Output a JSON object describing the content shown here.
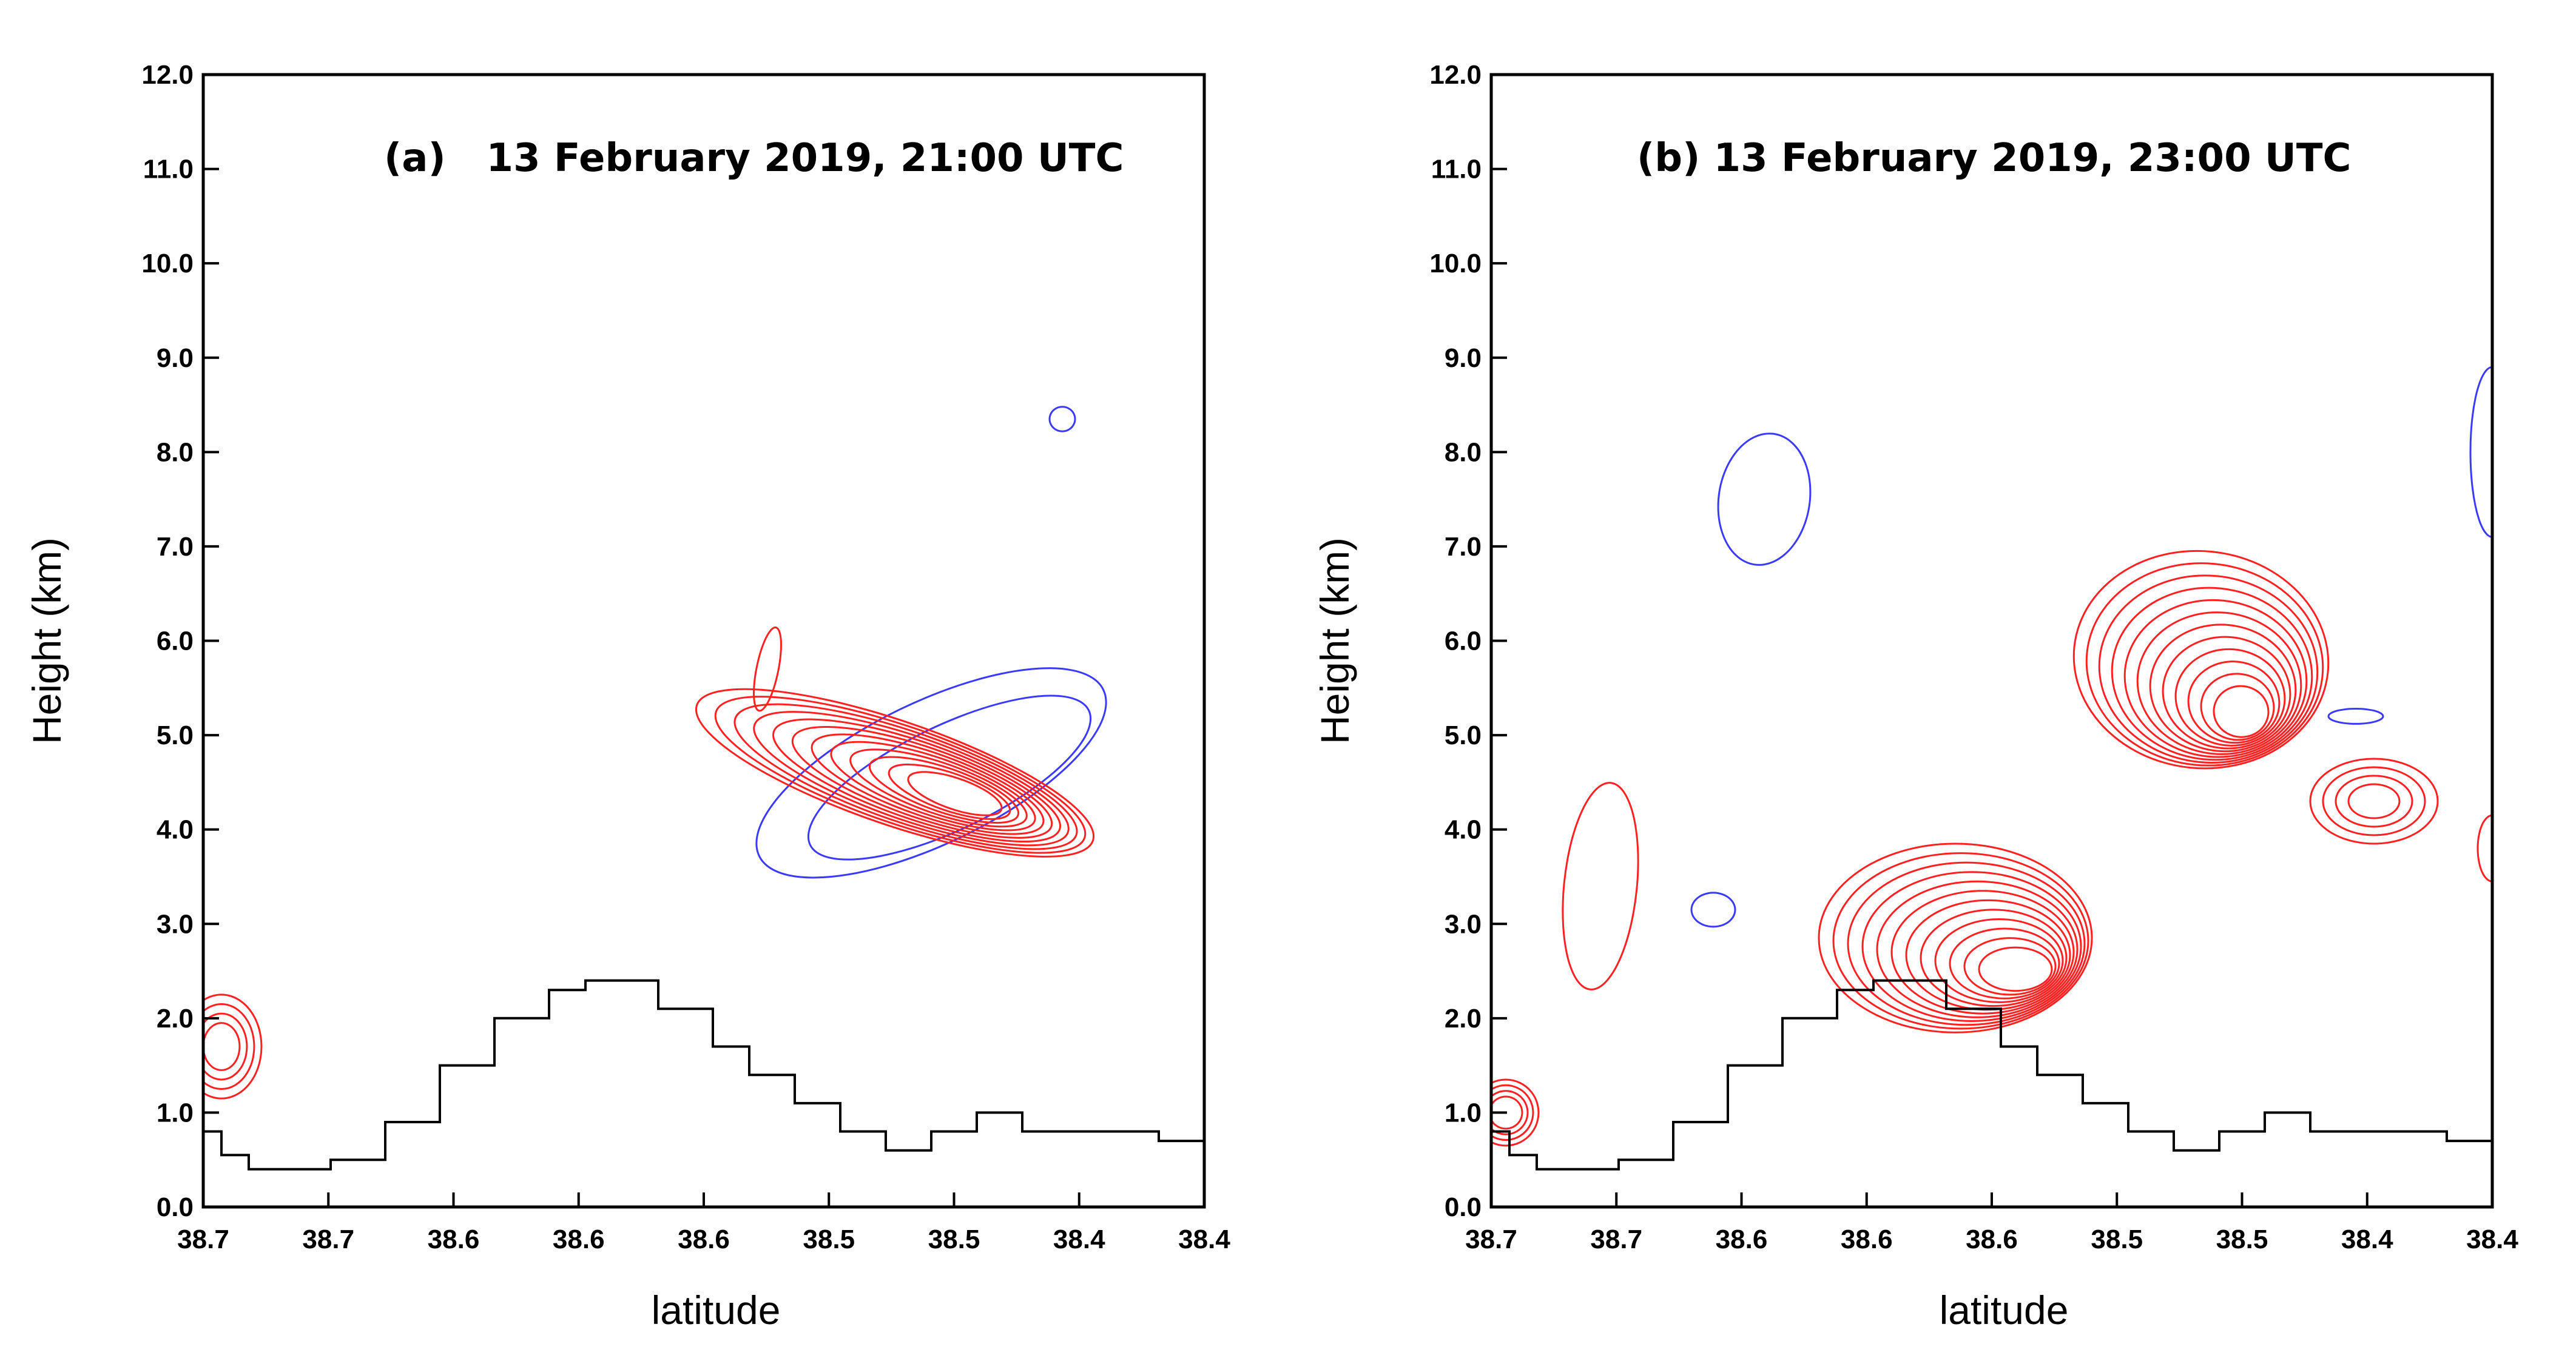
{
  "chart_data": [
    {
      "type": "contour",
      "title": "(a)   13 February 2019, 21:00 UTC",
      "xlabel": "latitude",
      "ylabel": "Height (km)",
      "ylim": [
        0,
        12
      ],
      "x_tick_labels": [
        "38.7",
        "38.7",
        "38.6",
        "38.6",
        "38.6",
        "38.5",
        "38.5",
        "38.4",
        "38.4"
      ],
      "y_tick_labels": [
        "0.0",
        "1.0",
        "2.0",
        "3.0",
        "4.0",
        "5.0",
        "6.0",
        "7.0",
        "8.0",
        "9.0",
        "10.0",
        "11.0",
        "12.0"
      ],
      "grid": false,
      "colors": {
        "blue_contours": "#3a3aff",
        "red_contours": "#ff2020",
        "terrain": "#000000"
      },
      "terrain": [
        [
          0,
          0.8
        ],
        [
          0.1,
          0.55
        ],
        [
          0.25,
          0.4
        ],
        [
          0.5,
          0.4
        ],
        [
          0.7,
          0.5
        ],
        [
          1.0,
          0.9
        ],
        [
          1.3,
          1.5
        ],
        [
          1.6,
          2.0
        ],
        [
          1.9,
          2.3
        ],
        [
          2.1,
          2.4
        ],
        [
          2.25,
          2.4
        ],
        [
          2.5,
          2.1
        ],
        [
          2.8,
          1.7
        ],
        [
          3.0,
          1.4
        ],
        [
          3.25,
          1.1
        ],
        [
          3.5,
          0.8
        ],
        [
          3.75,
          0.6
        ],
        [
          4.0,
          0.8
        ],
        [
          4.25,
          1.0
        ],
        [
          4.5,
          0.8
        ],
        [
          5.0,
          0.8
        ],
        [
          5.25,
          0.7
        ],
        [
          5.5,
          0.2
        ]
      ]
    },
    {
      "type": "contour",
      "title": "(b) 13 February 2019, 23:00 UTC",
      "xlabel": "latitude",
      "ylabel": "Height (km)",
      "ylim": [
        0,
        12
      ],
      "x_tick_labels": [
        "38.7",
        "38.7",
        "38.6",
        "38.6",
        "38.6",
        "38.5",
        "38.5",
        "38.4",
        "38.4"
      ],
      "y_tick_labels": [
        "0.0",
        "1.0",
        "2.0",
        "3.0",
        "4.0",
        "5.0",
        "6.0",
        "7.0",
        "8.0",
        "9.0",
        "10.0",
        "11.0",
        "12.0"
      ],
      "grid": false,
      "colors": {
        "blue_contours": "#3a3aff",
        "red_contours": "#ff2020",
        "terrain": "#000000"
      },
      "terrain": [
        [
          0,
          0.8
        ],
        [
          0.1,
          0.55
        ],
        [
          0.25,
          0.4
        ],
        [
          0.5,
          0.4
        ],
        [
          0.7,
          0.5
        ],
        [
          1.0,
          0.9
        ],
        [
          1.3,
          1.5
        ],
        [
          1.6,
          2.0
        ],
        [
          1.9,
          2.3
        ],
        [
          2.1,
          2.4
        ],
        [
          2.25,
          2.4
        ],
        [
          2.5,
          2.1
        ],
        [
          2.8,
          1.7
        ],
        [
          3.0,
          1.4
        ],
        [
          3.25,
          1.1
        ],
        [
          3.5,
          0.8
        ],
        [
          3.75,
          0.6
        ],
        [
          4.0,
          0.8
        ],
        [
          4.25,
          1.0
        ],
        [
          4.5,
          0.8
        ],
        [
          5.0,
          0.8
        ],
        [
          5.25,
          0.7
        ],
        [
          5.5,
          0.2
        ]
      ]
    }
  ]
}
